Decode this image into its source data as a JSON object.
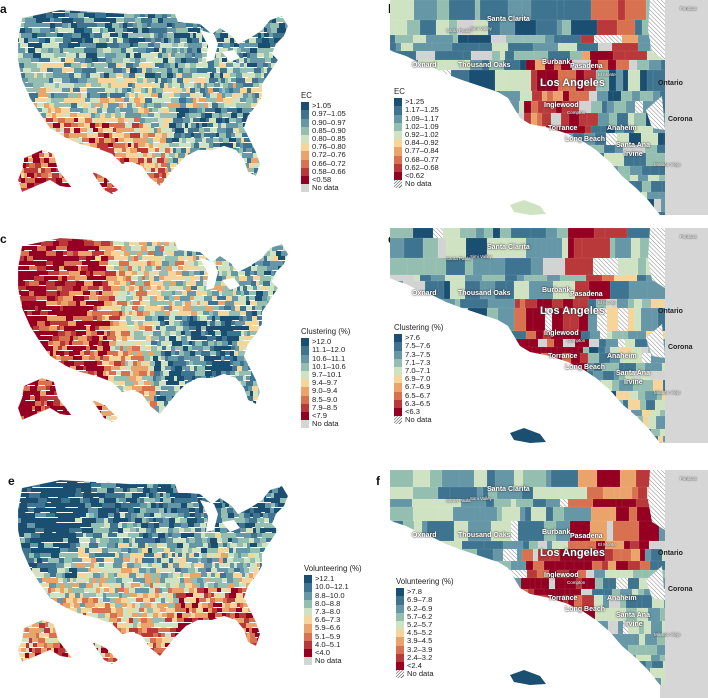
{
  "figure": {
    "palette": [
      "#1b4f72",
      "#3e7490",
      "#6597a6",
      "#94bfb0",
      "#cfe3c2",
      "#f6d59a",
      "#eba36c",
      "#d8714f",
      "#b9383a",
      "#950022"
    ],
    "nodata_color": "#d3d3d3",
    "ocean_color": "#ffffff",
    "out_of_region_color": "#d6d6d6"
  },
  "panels": [
    {
      "letter": "a",
      "kind": "us",
      "legend": {
        "title": "EC",
        "items": [
          ">1.05",
          "0.97–1.05",
          "0.90–0.97",
          "0.85–0.90",
          "0.80–0.85",
          "0.76–0.80",
          "0.72–0.76",
          "0.66–0.72",
          "0.58–0.66",
          "<0.58"
        ],
        "nodata": "No data",
        "nodata_style": "grey"
      }
    },
    {
      "letter": "b",
      "kind": "la",
      "legend": {
        "title": "EC",
        "items": [
          ">1.25",
          "1.17–1.25",
          "1.09–1.17",
          "1.02–1.09",
          "0.92–1.02",
          "0.84–0.92",
          "0.77–0.84",
          "0.68–0.77",
          "0.62–0.68",
          "<0.62"
        ],
        "nodata": "No data",
        "nodata_style": "hatch"
      }
    },
    {
      "letter": "c",
      "kind": "us",
      "legend": {
        "title": "Clustering (%)",
        "items": [
          ">12.0",
          "11.1–12.0",
          "10.6–11.1",
          "10.1–10.6",
          "9.7–10.1",
          "9.4–9.7",
          "9.0–9.4",
          "8.5–9.0",
          "7.9–8.5",
          "<7.9"
        ],
        "nodata": "No data",
        "nodata_style": "grey"
      }
    },
    {
      "letter": "d",
      "kind": "la",
      "legend": {
        "title": "Clustering (%)",
        "items": [
          ">7.6",
          "7.5–7.6",
          "7.3–7.5",
          "7.1–7.3",
          "7.0–7.1",
          "6.9–7.0",
          "6.7–6.9",
          "6.5–6.7",
          "6.3–6.5",
          "<6.3"
        ],
        "nodata": "No data",
        "nodata_style": "hatch"
      }
    },
    {
      "letter": "e",
      "kind": "us",
      "legend": {
        "title": "Volunteering (%)",
        "items": [
          ">12.1",
          "10.0–12.1",
          "8.8–10.0",
          "8.0–8.8",
          "7.3–8.0",
          "6.6–7.3",
          "5.9–6.6",
          "5.1–5.9",
          "4.0–5.1",
          "<4.0"
        ],
        "nodata": "No data",
        "nodata_style": "grey"
      }
    },
    {
      "letter": "f",
      "kind": "la",
      "legend": {
        "title": "Volunteering (%)",
        "items": [
          ">7.8",
          "6.9–7.8",
          "6.2–6.9",
          "5.7–6.2",
          "5.2–5.7",
          "4.5–5.2",
          "3.9–4.5",
          "3.2–3.9",
          "2.4–3.2",
          "<2.4"
        ],
        "nodata": "No data",
        "nodata_style": "hatch"
      }
    }
  ],
  "la_cities": {
    "large": [
      "Los Angeles"
    ],
    "medium": [
      "Santa Clarita",
      "Oxnard",
      "Thousand Oaks",
      "Burbank",
      "Pasadena",
      "Ontario",
      "Inglewood",
      "Torrance",
      "Long Beach",
      "Anaheim",
      "Santa Ana",
      "Irvine",
      "Corona"
    ],
    "small": [
      "Simi Valley",
      "Santa Paula",
      "El Monte",
      "Compton",
      "Mission Viejo",
      "Fontana"
    ]
  }
}
